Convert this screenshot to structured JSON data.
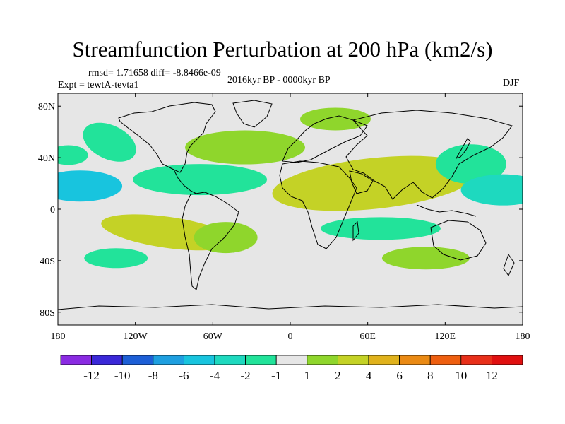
{
  "title": "Streamfunction Perturbation at 200 hPa (km2/s)",
  "stats": {
    "rmsd_label": "rmsd=",
    "rmsd_value": "1.71658",
    "diff_label": "diff=",
    "diff_value": "-8.8466e-09"
  },
  "experiment": "Expt = tewtA-tevta1",
  "period": "2016kyr BP - 0000kyr BP",
  "season": "DJF",
  "chart_data": {
    "type": "heatmap",
    "title": "Streamfunction Perturbation at 200 hPa (km2/s)",
    "variable": "streamfunction perturbation",
    "units": "km2/s",
    "projection": "cylindrical equidistant",
    "x_range": [
      -180,
      180
    ],
    "y_range": [
      -90,
      90
    ],
    "x_ticks": [
      {
        "value": -180,
        "label": "180"
      },
      {
        "value": -120,
        "label": "120W"
      },
      {
        "value": -60,
        "label": "60W"
      },
      {
        "value": 0,
        "label": "0"
      },
      {
        "value": 60,
        "label": "60E"
      },
      {
        "value": 120,
        "label": "120E"
      },
      {
        "value": 180,
        "label": "180"
      }
    ],
    "y_ticks": [
      {
        "value": 80,
        "label": "80N"
      },
      {
        "value": 40,
        "label": "40N"
      },
      {
        "value": 0,
        "label": "0"
      },
      {
        "value": -40,
        "label": "40S"
      },
      {
        "value": -80,
        "label": "80S"
      }
    ],
    "colorbar": {
      "levels": [
        -12,
        -10,
        -8,
        -6,
        -4,
        -2,
        -1,
        1,
        2,
        4,
        6,
        8,
        10,
        12
      ],
      "labels": [
        "-12",
        "-10",
        "-8",
        "-6",
        "-4",
        "-2",
        "-1",
        "1",
        "2",
        "4",
        "6",
        "8",
        "10",
        "12"
      ],
      "colors": [
        "#8a2be2",
        "#3a28d8",
        "#1d5fd6",
        "#1e9fe0",
        "#18c4de",
        "#1ed9bf",
        "#22e39a",
        "#e6e6e6",
        "#8fd62c",
        "#c4d226",
        "#e0b21c",
        "#ea8a14",
        "#ee5f10",
        "#e8301a",
        "#e01010"
      ]
    },
    "anomalies": [
      {
        "name": "north-pacific-tropical-negative",
        "lon": -163,
        "lat": 18,
        "level": -4
      },
      {
        "name": "dateline-subtropical-negative",
        "lon": -172,
        "lat": 42,
        "level": -1
      },
      {
        "name": "east-pacific-negative",
        "lon": -140,
        "lat": 52,
        "level": -1
      },
      {
        "name": "atlantic-tropical-negative",
        "lon": -70,
        "lat": 23,
        "level": -1
      },
      {
        "name": "north-atlantic-positive",
        "lon": -35,
        "lat": 48,
        "level": 2
      },
      {
        "name": "arctic-europe-positive",
        "lon": 35,
        "lat": 70,
        "level": 2
      },
      {
        "name": "afro-asian-positive",
        "lon": 65,
        "lat": 20,
        "level": 4
      },
      {
        "name": "south-pacific-positive",
        "lon": -95,
        "lat": -18,
        "level": 4
      },
      {
        "name": "south-america-positive",
        "lon": -50,
        "lat": -22,
        "level": 2
      },
      {
        "name": "southern-ocean-negative",
        "lon": -135,
        "lat": -38,
        "level": -1
      },
      {
        "name": "south-indian-negative",
        "lon": 70,
        "lat": -15,
        "level": -1
      },
      {
        "name": "australia-positive",
        "lon": 105,
        "lat": -38,
        "level": 2
      },
      {
        "name": "east-asia-negative",
        "lon": 140,
        "lat": 35,
        "level": -1
      },
      {
        "name": "west-pacific-tropical-negative",
        "lon": 165,
        "lat": 15,
        "level": -2
      }
    ]
  }
}
